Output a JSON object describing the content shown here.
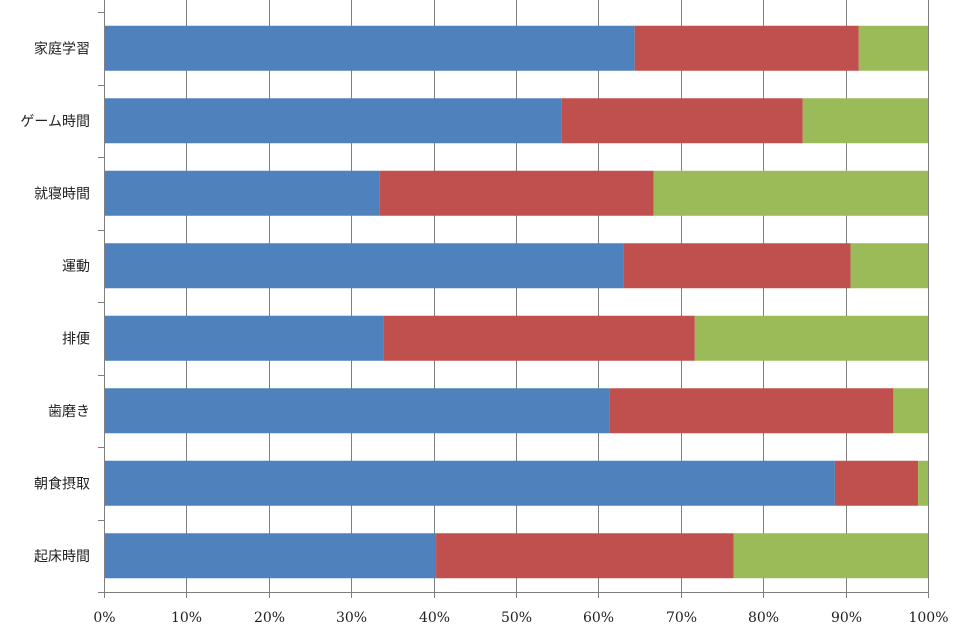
{
  "chart_data": {
    "type": "bar",
    "orientation": "horizontal",
    "stacked": "percent",
    "title": "",
    "xlabel": "",
    "ylabel": "",
    "xlim": [
      0,
      100
    ],
    "x_ticks": [
      "0%",
      "10%",
      "20%",
      "30%",
      "40%",
      "50%",
      "60%",
      "70%",
      "80%",
      "90%",
      "100%"
    ],
    "grid": "vertical",
    "legend": "none",
    "categories": [
      "家庭学習",
      "ゲーム時間",
      "就寝時間",
      "運動",
      "排便",
      "歯磨き",
      "朝食摂取",
      "起床時間"
    ],
    "series": [
      {
        "color": "#4F81BD",
        "values": [
          64.4,
          55.5,
          33.4,
          63.1,
          33.9,
          61.4,
          88.7,
          40.3
        ]
      },
      {
        "color": "#C0504D",
        "values": [
          27.2,
          29.3,
          33.3,
          27.5,
          37.8,
          34.4,
          10.1,
          36.1
        ]
      },
      {
        "color": "#9BBB59",
        "values": [
          8.4,
          15.2,
          33.3,
          9.4,
          28.3,
          4.2,
          1.2,
          23.6
        ]
      }
    ]
  }
}
